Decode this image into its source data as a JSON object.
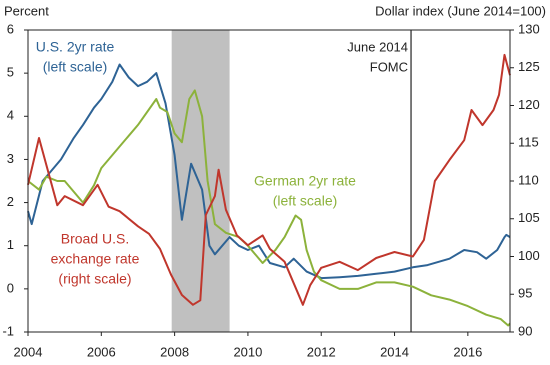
{
  "chart_data": {
    "type": "line",
    "y_label": "Percent",
    "y2_label": "Dollar index (June 2014=100)",
    "xlim": [
      2004,
      2017.15
    ],
    "xticks": [
      2004,
      2006,
      2008,
      2010,
      2012,
      2014,
      2016
    ],
    "ylim": [
      -1,
      6
    ],
    "yticks": [
      -1,
      0,
      1,
      2,
      3,
      4,
      5,
      6
    ],
    "y2lim": [
      90,
      130
    ],
    "y2ticks": [
      90,
      95,
      100,
      105,
      110,
      115,
      120,
      125,
      130
    ],
    "shade": [
      2007.92,
      2009.5
    ],
    "vline": {
      "x": 2014.45,
      "label": [
        "June 2014",
        "FOMC"
      ]
    },
    "series": [
      {
        "name": [
          "U.S. 2yr rate",
          "(left scale)"
        ],
        "color": "#2e6395",
        "x": [
          2004.0,
          2004.1,
          2004.4,
          2004.6,
          2004.9,
          2005.25,
          2005.5,
          2005.8,
          2006.0,
          2006.3,
          2006.5,
          2006.75,
          2007.0,
          2007.25,
          2007.5,
          2007.75,
          2008.0,
          2008.2,
          2008.45,
          2008.75,
          2008.95,
          2009.1,
          2009.5,
          2009.75,
          2010.0,
          2010.3,
          2010.6,
          2011.0,
          2011.25,
          2011.6,
          2012.0,
          2012.5,
          2013.0,
          2013.5,
          2014.0,
          2014.5,
          2014.9,
          2015.5,
          2015.9,
          2016.25,
          2016.5,
          2016.8,
          2017.0,
          2017.05,
          2017.15
        ],
        "values": [
          1.8,
          1.5,
          2.5,
          2.7,
          3.0,
          3.5,
          3.8,
          4.2,
          4.4,
          4.8,
          5.2,
          4.9,
          4.7,
          4.8,
          5.0,
          4.3,
          3.1,
          1.6,
          2.9,
          2.3,
          1.0,
          0.8,
          1.2,
          1.0,
          0.9,
          1.0,
          0.6,
          0.5,
          0.7,
          0.4,
          0.25,
          0.27,
          0.3,
          0.35,
          0.4,
          0.5,
          0.55,
          0.7,
          0.9,
          0.85,
          0.7,
          0.9,
          1.2,
          1.25,
          1.2
        ]
      },
      {
        "name": [
          "German 2yr rate",
          "(left scale)"
        ],
        "color": "#8cb23b",
        "x": [
          2004.0,
          2004.3,
          2004.5,
          2004.8,
          2005.0,
          2005.5,
          2005.8,
          2006.0,
          2006.5,
          2007.0,
          2007.5,
          2007.6,
          2007.8,
          2008.0,
          2008.2,
          2008.4,
          2008.55,
          2008.75,
          2008.9,
          2009.1,
          2009.4,
          2009.75,
          2010.0,
          2010.4,
          2010.75,
          2011.0,
          2011.3,
          2011.45,
          2011.6,
          2011.8,
          2012.0,
          2012.5,
          2013.0,
          2013.5,
          2014.0,
          2014.5,
          2015.0,
          2015.5,
          2016.0,
          2016.5,
          2016.9,
          2017.1,
          2017.15
        ],
        "values": [
          2.5,
          2.3,
          2.6,
          2.5,
          2.5,
          2.0,
          2.4,
          2.8,
          3.3,
          3.8,
          4.4,
          4.2,
          4.1,
          3.6,
          3.4,
          4.4,
          4.6,
          4.0,
          2.5,
          1.5,
          1.3,
          1.2,
          1.0,
          0.6,
          0.9,
          1.2,
          1.7,
          1.6,
          0.9,
          0.4,
          0.2,
          0.0,
          0.0,
          0.15,
          0.15,
          0.05,
          -0.15,
          -0.25,
          -0.4,
          -0.6,
          -0.7,
          -0.85,
          -0.8
        ]
      },
      {
        "name": [
          "Broad U.S.",
          "exchange rate",
          "(right scale)"
        ],
        "color": "#c0362c",
        "axis": "y2",
        "x": [
          2004.0,
          2004.3,
          2004.8,
          2005.0,
          2005.5,
          2005.9,
          2006.2,
          2006.5,
          2007.0,
          2007.3,
          2007.6,
          2007.9,
          2008.2,
          2008.5,
          2008.7,
          2008.85,
          2009.1,
          2009.2,
          2009.4,
          2009.7,
          2010.0,
          2010.4,
          2010.6,
          2011.0,
          2011.5,
          2011.7,
          2012.0,
          2012.5,
          2013.0,
          2013.5,
          2014.0,
          2014.5,
          2014.8,
          2015.1,
          2015.5,
          2015.9,
          2016.1,
          2016.4,
          2016.7,
          2016.85,
          2017.0,
          2017.15
        ],
        "values": [
          109.5,
          115.7,
          106.8,
          108,
          106.8,
          109.5,
          106.6,
          106,
          104,
          103,
          101,
          97.6,
          94.9,
          93.6,
          94.2,
          105.5,
          108,
          111.5,
          106.2,
          102.8,
          101.5,
          102.8,
          101,
          99.3,
          93.6,
          96.2,
          98.5,
          99.3,
          98.2,
          99.8,
          100.6,
          100,
          102.2,
          110,
          112.8,
          115.4,
          119.4,
          117.4,
          119.4,
          121.4,
          126.7,
          124
        ]
      }
    ]
  }
}
